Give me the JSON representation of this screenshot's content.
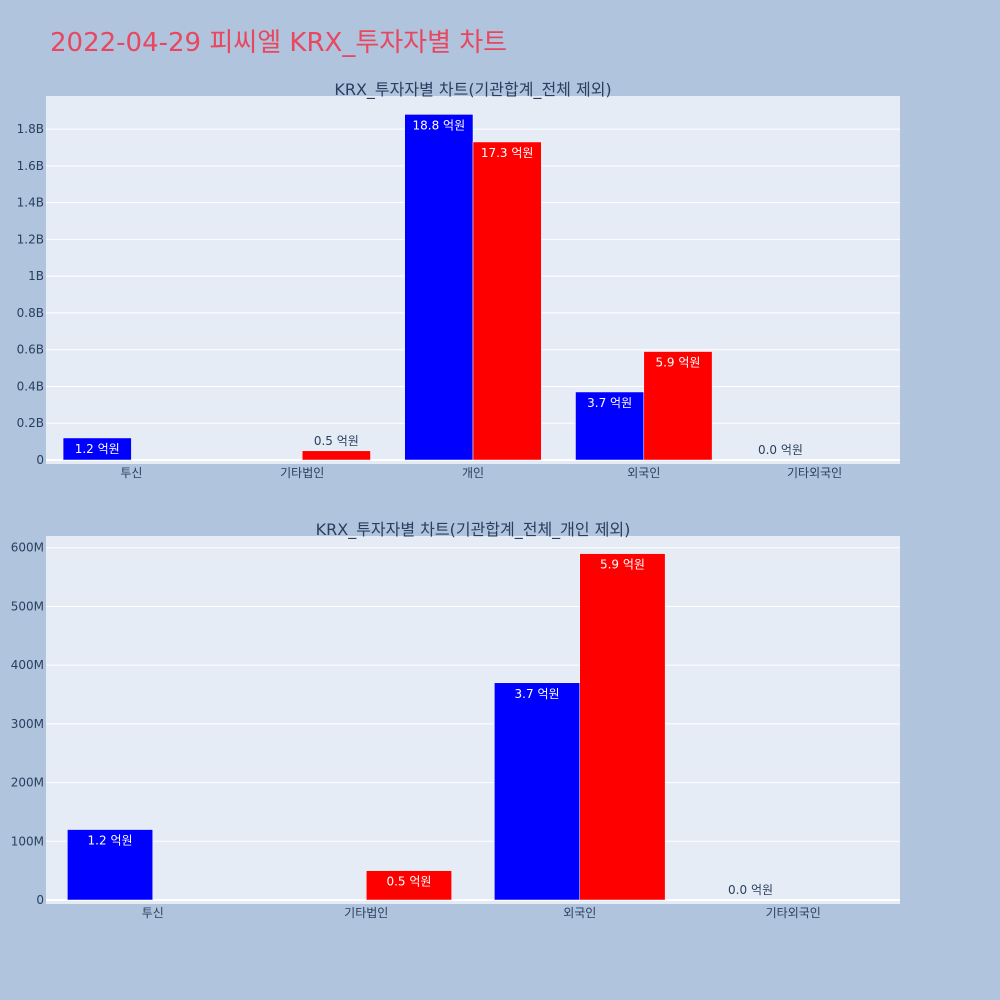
{
  "page": {
    "title": "2022-04-29 피씨엘 KRX_투자자별 차트"
  },
  "colors": {
    "background": "#b0c4de",
    "plot_bg": "#e5ecf6",
    "title": "#e8475f",
    "series_blue": "#0000ff",
    "series_red": "#ff0000",
    "axis_text": "#2a3f5f"
  },
  "chart_data": [
    {
      "type": "bar",
      "title": "KRX_투자자별 차트(기관합계_전체 제외)",
      "categories": [
        "투신",
        "기타법인",
        "개인",
        "외국인",
        "기타외국인"
      ],
      "series": [
        {
          "color": "#0000ff",
          "values": [
            120000000,
            0,
            1880000000,
            370000000,
            0
          ],
          "labels": [
            "1.2 억원",
            "",
            "18.8 억원",
            "3.7 억원",
            "0.0 억원"
          ]
        },
        {
          "color": "#ff0000",
          "values": [
            0,
            50000000,
            1730000000,
            590000000,
            0
          ],
          "labels": [
            "",
            "0.5 억원",
            "17.3 억원",
            "5.9 억원",
            ""
          ]
        }
      ],
      "ylim": [
        0,
        1980000000
      ],
      "yticks": [
        0,
        200000000,
        400000000,
        600000000,
        800000000,
        1000000000,
        1200000000,
        1400000000,
        1600000000,
        1800000000
      ],
      "ytick_labels": [
        "0",
        "0.2B",
        "0.4B",
        "0.6B",
        "0.8B",
        "1B",
        "1.2B",
        "1.4B",
        "1.6B",
        "1.8B"
      ],
      "grid": true,
      "xlabel": "",
      "ylabel": ""
    },
    {
      "type": "bar",
      "title": "KRX_투자자별 차트(기관합계_전체_개인 제외)",
      "categories": [
        "투신",
        "기타법인",
        "외국인",
        "기타외국인"
      ],
      "series": [
        {
          "color": "#0000ff",
          "values": [
            120000000,
            0,
            370000000,
            0
          ],
          "labels": [
            "1.2 억원",
            "",
            "3.7 억원",
            "0.0 억원"
          ]
        },
        {
          "color": "#ff0000",
          "values": [
            0,
            50000000,
            590000000,
            0
          ],
          "labels": [
            "",
            "0.5 억원",
            "5.9 억원",
            ""
          ]
        }
      ],
      "ylim": [
        0,
        620000000
      ],
      "yticks": [
        0,
        100000000,
        200000000,
        300000000,
        400000000,
        500000000,
        600000000
      ],
      "ytick_labels": [
        "0",
        "100M",
        "200M",
        "300M",
        "400M",
        "500M",
        "600M"
      ],
      "grid": true,
      "xlabel": "",
      "ylabel": ""
    }
  ]
}
